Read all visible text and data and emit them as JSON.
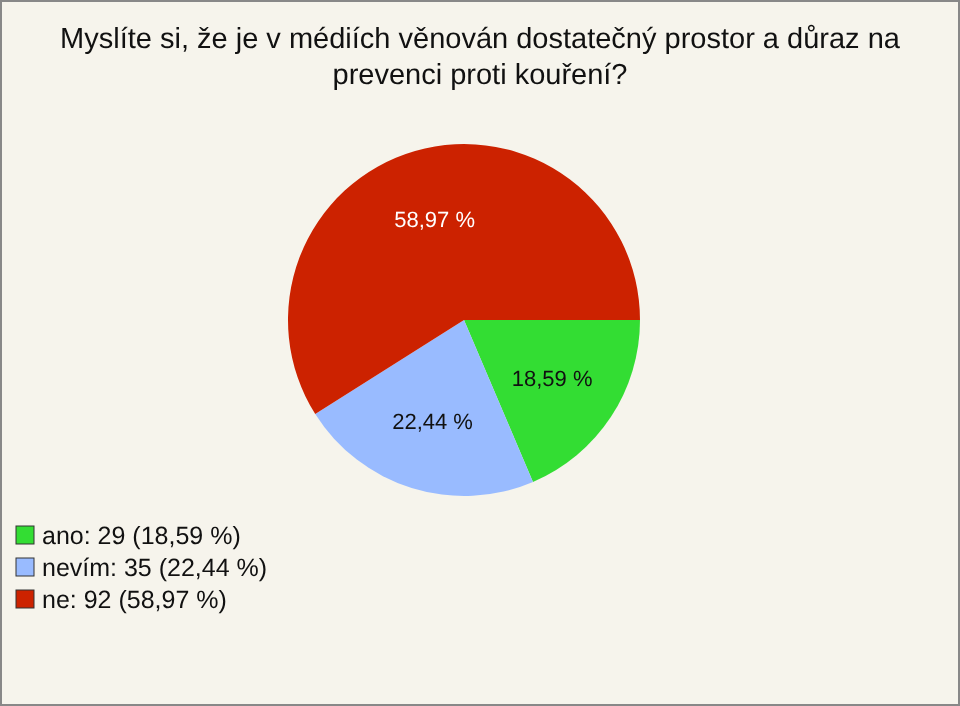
{
  "chart_data": {
    "type": "pie",
    "title": "Myslíte si, že je v médiích věnován dostatečný prostor a důraz na prevenci proti kouření?",
    "categories": [
      "ano: 29 (18,59 %)",
      "nevím: 35 (22,44 %)",
      "ne: 92 (58,97 %)"
    ],
    "values": [
      18.59,
      22.44,
      58.97
    ],
    "value_labels": [
      "18,59 %",
      "22,44 %",
      "58,97 %"
    ],
    "colors": [
      "#33dd33",
      "#99bbff",
      "#cc2200"
    ],
    "legend": "bottom left"
  }
}
